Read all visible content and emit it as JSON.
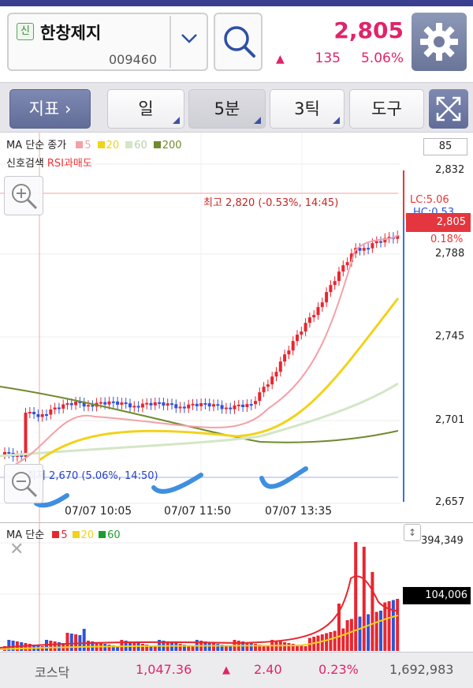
{
  "stock": {
    "badge": "신",
    "name": "한창제지",
    "code": "009460",
    "price": "2,805",
    "change_arrow": "▲",
    "change": "135",
    "rate": "5.06%"
  },
  "toolbar": {
    "indicator_label": "지표 ›",
    "day_label": "일",
    "min_label": "5분",
    "tick_label": "3틱",
    "tools_label": "도구"
  },
  "price_chart": {
    "legend_ma": "MA 단순 종가",
    "legend_ma_periods": [
      {
        "label": "5",
        "color": "#f4a0a8"
      },
      {
        "label": "20",
        "color": "#f2d21a"
      },
      {
        "label": "60",
        "color": "#d3e6c6"
      },
      {
        "label": "200",
        "color": "#6f8b2f"
      }
    ],
    "legend_signal": "신호검색",
    "legend_rsi": "RSI과매도",
    "indicator_value": "85",
    "y_ticks": [
      "2,832",
      "2,788",
      "2,745",
      "2,701",
      "2,657"
    ],
    "high_label": "최고 2,820 (-0.53%, 14:45)",
    "low_label": "최저 2,670 (5.06%, 14:50)",
    "lc_label": "LC:5.06",
    "hc_label": "HC:0.53",
    "current_price": "2,805",
    "current_pct": "0.18%",
    "time_labels": [
      "07/07 10:05",
      "07/07 11:50",
      "07/07 13:35"
    ],
    "up_color": "#e8262f",
    "down_color": "#2f54d8"
  },
  "volume_chart": {
    "legend_ma": "MA 단순",
    "legend_periods": [
      {
        "label": "5",
        "color": "#e8262f"
      },
      {
        "label": "20",
        "color": "#f2d21a"
      },
      {
        "label": "60",
        "color": "#1e9d2c"
      }
    ],
    "max_label": "394,349",
    "current_label": "104,006"
  },
  "footer": {
    "market": "코스닥",
    "index": "1,047.36",
    "arrow": "▲",
    "change": "2.40",
    "rate": "0.23%",
    "volume": "1,692,983"
  },
  "colors": {
    "accent_red": "#e0246a",
    "brand_blue": "#3a3f8f"
  },
  "icons": {
    "search": "magnifier-icon",
    "settings": "gear-icon",
    "expand": "expand-arrows-icon",
    "zoom_in": "zoom-in-icon",
    "zoom_out": "zoom-out-icon"
  }
}
